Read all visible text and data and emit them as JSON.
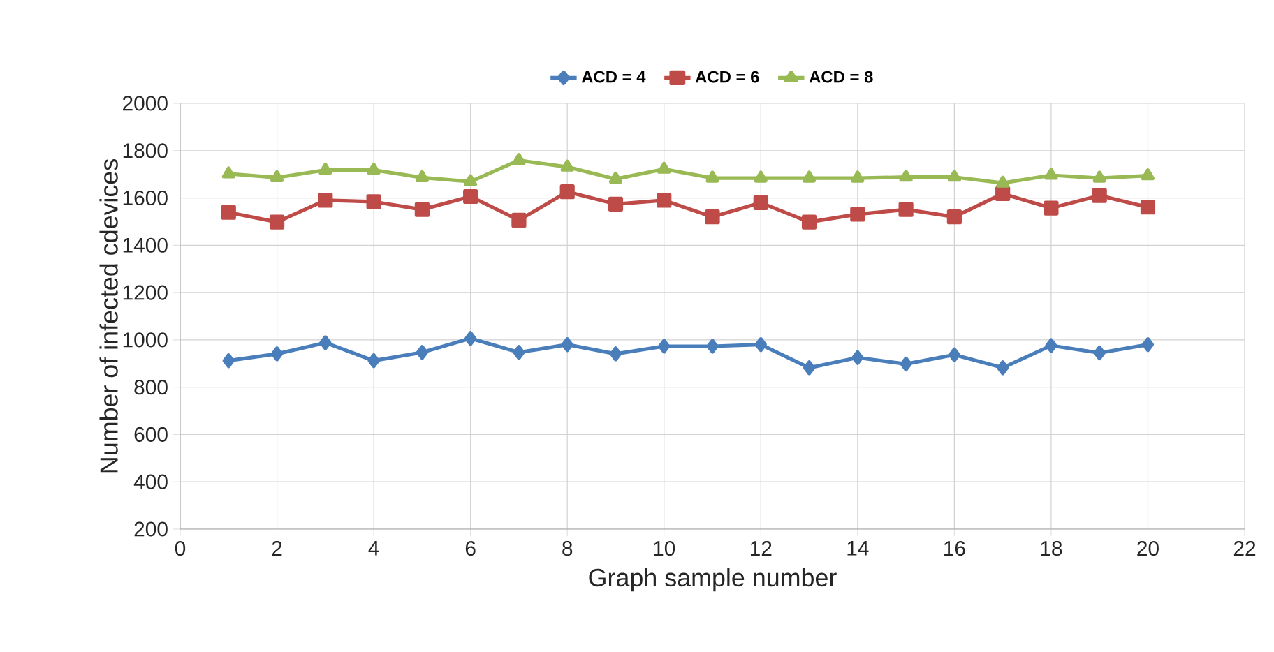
{
  "chart_data": {
    "type": "line",
    "xlabel": "Graph sample number",
    "ylabel": "Number of infected cdevices",
    "x": [
      1,
      2,
      3,
      4,
      5,
      6,
      7,
      8,
      9,
      10,
      11,
      12,
      13,
      14,
      15,
      16,
      17,
      18,
      19,
      20
    ],
    "series": [
      {
        "name": "ACD = 4",
        "color": "#4a7ebb",
        "marker": "diamond",
        "values": [
          912,
          941,
          988,
          912,
          947,
          1006,
          947,
          980,
          941,
          973,
          973,
          980,
          882,
          925,
          898,
          937,
          882,
          976,
          945,
          980
        ]
      },
      {
        "name": "ACD = 6",
        "color": "#be4b48",
        "marker": "square",
        "values": [
          1539,
          1498,
          1590,
          1584,
          1551,
          1606,
          1506,
          1626,
          1574,
          1590,
          1520,
          1580,
          1498,
          1531,
          1551,
          1520,
          1618,
          1557,
          1610,
          1561
        ]
      },
      {
        "name": "ACD = 8",
        "color": "#98b954",
        "marker": "triangle",
        "values": [
          1702,
          1686,
          1718,
          1718,
          1686,
          1669,
          1759,
          1731,
          1680,
          1722,
          1684,
          1684,
          1684,
          1684,
          1688,
          1688,
          1663,
          1696,
          1684,
          1694
        ]
      }
    ],
    "xlim": [
      0,
      22
    ],
    "ylim": [
      200,
      2000
    ],
    "xticks": [
      0,
      2,
      4,
      6,
      8,
      10,
      12,
      14,
      16,
      18,
      20,
      22
    ],
    "yticks": [
      200,
      400,
      600,
      800,
      1000,
      1200,
      1400,
      1600,
      1800,
      2000
    ],
    "grid": true,
    "legend": "top",
    "line_style": "solid"
  }
}
